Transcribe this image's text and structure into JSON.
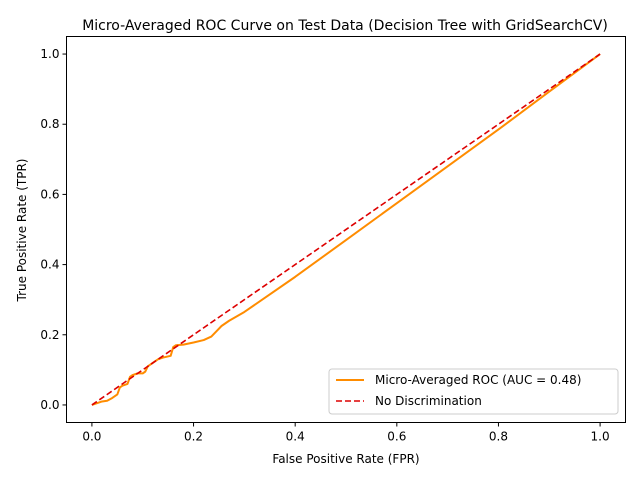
{
  "chart_data": {
    "type": "line",
    "title": "Micro-Averaged ROC Curve on Test Data (Decision Tree with GridSearchCV)",
    "xlabel": "False Positive Rate (FPR)",
    "ylabel": "True Positive Rate (TPR)",
    "xlim": [
      -0.05,
      1.05
    ],
    "ylim": [
      -0.05,
      1.05
    ],
    "xticks": [
      "0.0",
      "0.2",
      "0.4",
      "0.6",
      "0.8",
      "1.0"
    ],
    "yticks": [
      "0.0",
      "0.2",
      "0.4",
      "0.6",
      "0.8",
      "1.0"
    ],
    "xtick_values": [
      0.0,
      0.2,
      0.4,
      0.6,
      0.8,
      1.0
    ],
    "ytick_values": [
      0.0,
      0.2,
      0.4,
      0.6,
      0.8,
      1.0
    ],
    "grid": false,
    "legend_position": "lower-right",
    "series": [
      {
        "name": "Micro-Averaged ROC (AUC = 0.48)",
        "color": "#ff8c00",
        "style": "solid",
        "x": [
          0.0,
          0.01,
          0.02,
          0.03,
          0.04,
          0.05,
          0.055,
          0.06,
          0.07,
          0.075,
          0.08,
          0.09,
          0.1,
          0.105,
          0.11,
          0.12,
          0.13,
          0.14,
          0.155,
          0.16,
          0.165,
          0.18,
          0.2,
          0.22,
          0.235,
          0.245,
          0.255,
          0.27,
          0.3,
          0.4,
          0.5,
          0.6,
          0.7,
          0.8,
          0.9,
          1.0
        ],
        "y": [
          0.0,
          0.005,
          0.01,
          0.012,
          0.02,
          0.03,
          0.05,
          0.055,
          0.06,
          0.08,
          0.085,
          0.09,
          0.09,
          0.095,
          0.11,
          0.12,
          0.13,
          0.135,
          0.14,
          0.165,
          0.17,
          0.172,
          0.178,
          0.185,
          0.195,
          0.21,
          0.225,
          0.24,
          0.265,
          0.365,
          0.47,
          0.575,
          0.68,
          0.785,
          0.893,
          1.0
        ]
      },
      {
        "name": "No Discrimination",
        "color": "#dd0000",
        "style": "dashed",
        "x": [
          0.0,
          1.0
        ],
        "y": [
          0.0,
          1.0
        ]
      }
    ]
  }
}
